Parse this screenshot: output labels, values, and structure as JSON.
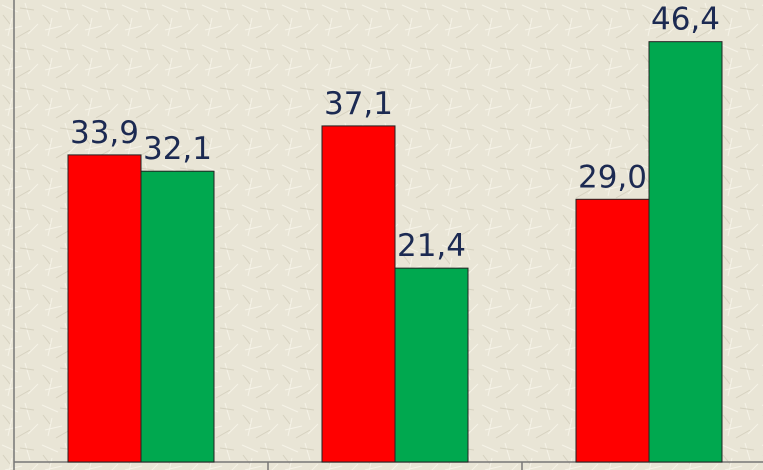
{
  "chart_data": {
    "type": "bar",
    "categories": [
      null,
      null,
      null
    ],
    "series": [
      {
        "color": "#ff0000",
        "values": [
          33.9,
          37.1,
          29.0
        ],
        "value_labels": [
          "33,9",
          "37,1",
          "29,0"
        ]
      },
      {
        "color": "#00a84f",
        "values": [
          32.1,
          21.4,
          46.4
        ],
        "value_labels": [
          "32,1",
          "21,4",
          "46,4"
        ]
      }
    ],
    "ylim": [
      0,
      51
    ]
  }
}
